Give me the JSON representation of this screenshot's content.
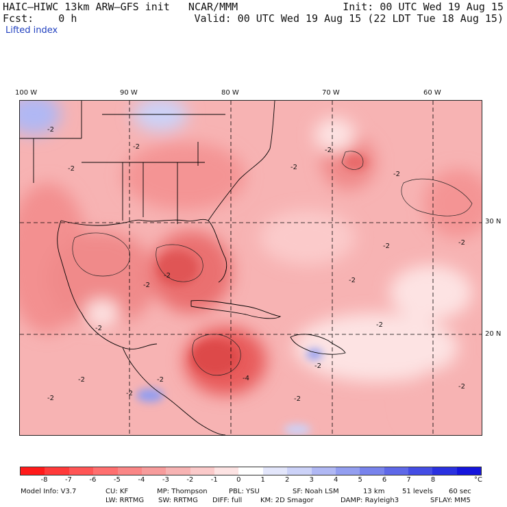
{
  "header": {
    "title": "HAIC–HIWC 13km ARW–GFS init   NCAR/MMM",
    "fcst": "Fcst:    0 h",
    "init": "Init: 00 UTC Wed 19 Aug 15",
    "valid": "Valid: 00 UTC Wed 19 Aug 15 (22 LDT Tue 18 Aug 15)",
    "field": "Lifted index"
  },
  "axes": {
    "lon_labels": [
      "100 W",
      "90 W",
      "80 W",
      "70 W",
      "60 W"
    ],
    "lat_labels": [
      "30 N",
      "20 N"
    ]
  },
  "contour_labels": [
    "-2",
    "-2",
    "-2",
    "-2",
    "-2",
    "-2",
    "-2",
    "-2",
    "-2",
    "-2",
    "-2",
    "-2",
    "-2",
    "-2",
    "-2",
    "-2",
    "-2",
    "-2",
    "-2",
    "-2",
    "-4"
  ],
  "colorbar": {
    "colors": [
      "#ff1a1a",
      "#ff3a3a",
      "#ff5555",
      "#ff6f6f",
      "#fa8686",
      "#f79c9c",
      "#f7b3b3",
      "#fbcaca",
      "#fde3e3",
      "#ffffff",
      "#e3e6fb",
      "#ccd2f8",
      "#b0b8f4",
      "#939ef0",
      "#7883ec",
      "#5e68e8",
      "#444de4",
      "#2a31e0",
      "#1515dc"
    ],
    "tick_labels": [
      "-8",
      "-7",
      "-6",
      "-5",
      "-4",
      "-3",
      "-2",
      "-1",
      "0",
      "1",
      "2",
      "3",
      "4",
      "5",
      "6",
      "7",
      "8"
    ],
    "unit": "°C"
  },
  "footer": {
    "line1": [
      "Model Info: V3.7",
      "CU: KF",
      "MP: Thompson",
      "PBL: YSU",
      "SF: Noah LSM",
      "13 km",
      "51 levels",
      "60 sec"
    ],
    "line2": [
      "LW: RRTMG",
      "SW: RRTMG",
      "DIFF: full",
      "KM: 2D Smagor",
      "DAMP: Rayleigh3",
      "SFLAY: MM5"
    ]
  }
}
